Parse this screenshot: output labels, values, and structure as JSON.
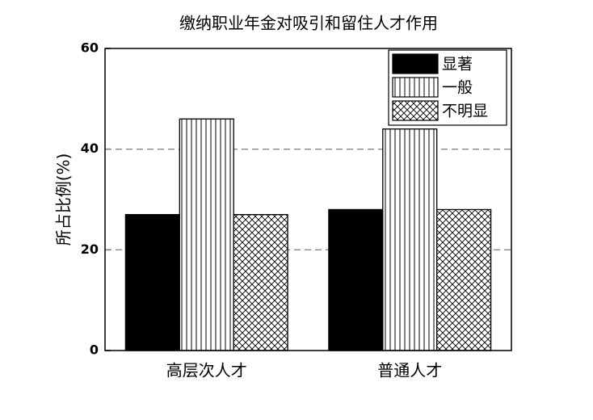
{
  "chart_data": {
    "type": "bar",
    "title": "缴纳职业年金对吸引和留住人才作用",
    "y_label": "所占比例(%)",
    "categories": [
      "高层次人才",
      "普通人才"
    ],
    "series": [
      {
        "name": "显著",
        "color": "#000000",
        "pattern": "solid",
        "values": [
          27,
          28
        ]
      },
      {
        "name": "一般",
        "color": "#000000",
        "pattern": "vertical",
        "values": [
          46,
          44
        ]
      },
      {
        "name": "不明显",
        "color": "#000000",
        "pattern": "crosshatch",
        "values": [
          27,
          28
        ]
      }
    ],
    "ylim": [
      0,
      60
    ],
    "yticks": [
      0,
      20,
      40,
      60
    ],
    "grid": true,
    "legend": "top-right"
  }
}
